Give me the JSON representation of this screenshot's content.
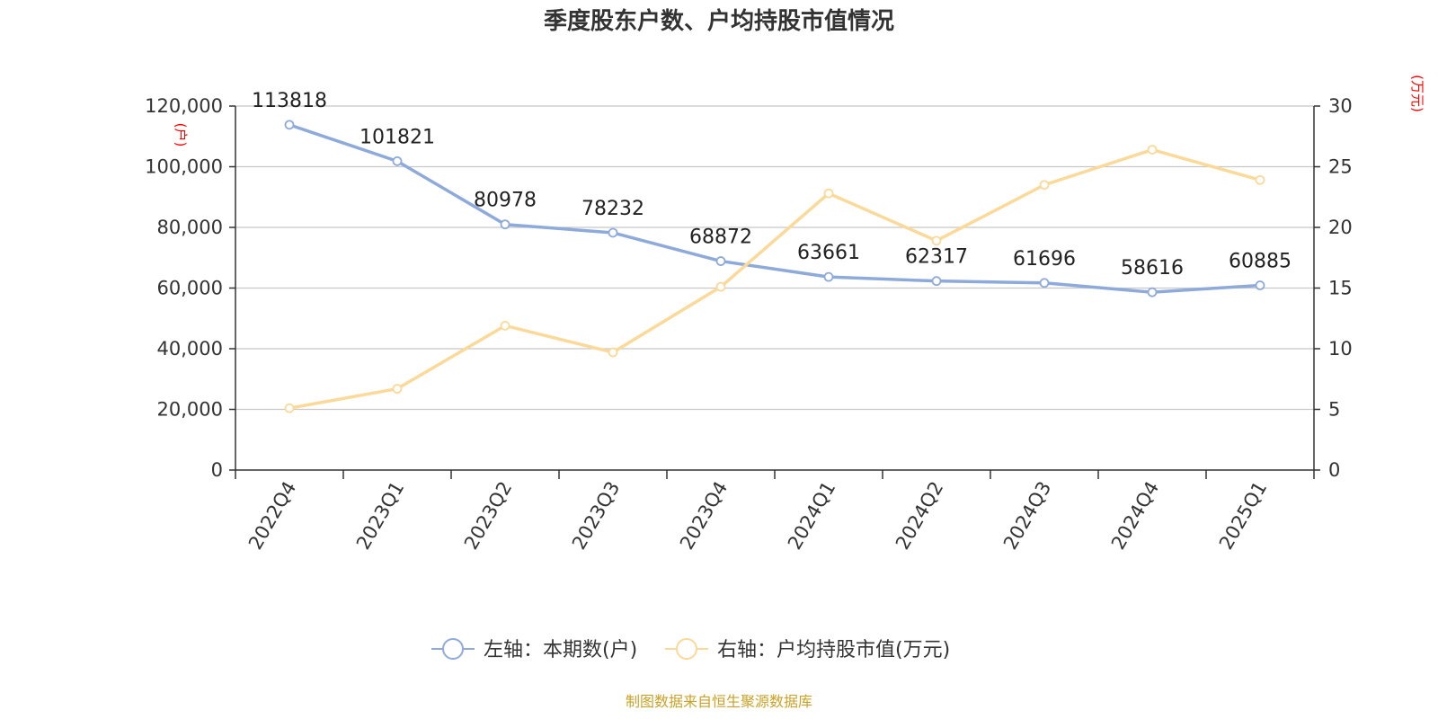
{
  "chart_data": {
    "type": "line",
    "title": "季度股东户数、户均持股市值情况",
    "categories": [
      "2022Q4",
      "2023Q1",
      "2023Q2",
      "2023Q3",
      "2023Q4",
      "2024Q1",
      "2024Q2",
      "2024Q3",
      "2024Q4",
      "2025Q1"
    ],
    "left_axis": {
      "unit": "(户)",
      "ylim": [
        0,
        120000
      ],
      "ticks": [
        0,
        20000,
        40000,
        60000,
        80000,
        100000,
        120000
      ],
      "tick_labels": [
        "0",
        "20,000",
        "40,000",
        "60,000",
        "80,000",
        "100,000",
        "120,000"
      ]
    },
    "right_axis": {
      "unit": "(万元)",
      "ylim": [
        0,
        30
      ],
      "ticks": [
        0,
        5,
        10,
        15,
        20,
        25,
        30
      ],
      "tick_labels": [
        "0",
        "5",
        "10",
        "15",
        "20",
        "25",
        "30"
      ]
    },
    "series": [
      {
        "name": "左轴：本期数(户)",
        "axis": "left",
        "color": "#8eaadb",
        "values": [
          113818,
          101821,
          80978,
          78232,
          68872,
          63661,
          62317,
          61696,
          58616,
          60885
        ],
        "data_labels": [
          "113818",
          "101821",
          "80978",
          "78232",
          "68872",
          "63661",
          "62317",
          "61696",
          "58616",
          "60885"
        ]
      },
      {
        "name": "右轴：户均持股市值(万元)",
        "axis": "right",
        "color": "#fad999",
        "values": [
          5.1,
          6.7,
          11.9,
          9.7,
          15.1,
          22.8,
          18.9,
          23.5,
          26.4,
          23.9
        ]
      }
    ],
    "grid": true,
    "legend_position": "bottom-center"
  },
  "source_note": "制图数据来自恒生聚源数据库"
}
